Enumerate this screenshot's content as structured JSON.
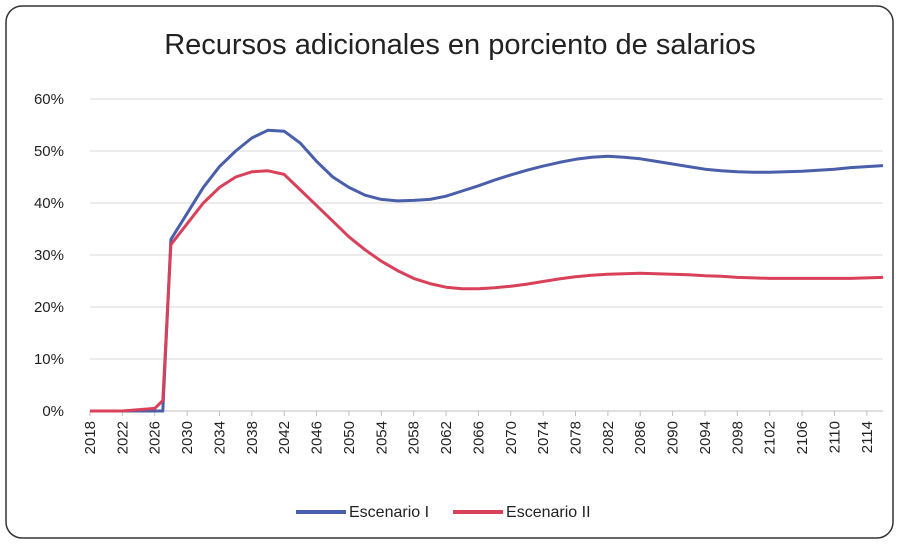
{
  "chart_data": {
    "type": "line",
    "title": "Recursos adicionales en porciento de salarios",
    "x": [
      2018,
      2022,
      2026,
      2027,
      2028,
      2029,
      2030,
      2032,
      2034,
      2036,
      2038,
      2040,
      2042,
      2044,
      2046,
      2048,
      2050,
      2052,
      2054,
      2056,
      2058,
      2060,
      2062,
      2064,
      2066,
      2068,
      2070,
      2072,
      2074,
      2076,
      2078,
      2080,
      2082,
      2084,
      2086,
      2088,
      2090,
      2092,
      2094,
      2096,
      2098,
      2100,
      2102,
      2104,
      2106,
      2108,
      2110,
      2112,
      2114,
      2116
    ],
    "series": [
      {
        "name": "Escenario I",
        "color": "#4a5faa",
        "values": [
          0,
          0,
          0,
          0,
          33,
          35.5,
          38,
          43,
          47,
          50,
          52.5,
          54,
          53.8,
          51.5,
          48,
          45,
          43,
          41.5,
          40.7,
          40.4,
          40.5,
          40.7,
          41.3,
          42.3,
          43.3,
          44.4,
          45.4,
          46.3,
          47.1,
          47.8,
          48.4,
          48.8,
          49,
          48.8,
          48.5,
          48,
          47.5,
          47,
          46.5,
          46.2,
          46,
          45.9,
          45.9,
          46,
          46.1,
          46.3,
          46.5,
          46.8,
          47,
          47.2
        ]
      },
      {
        "name": "Escenario II",
        "color": "#d9405a",
        "values": [
          0,
          0,
          0.5,
          2,
          32,
          34,
          36,
          40,
          43,
          45,
          46,
          46.2,
          45.5,
          42.5,
          39.5,
          36.5,
          33.5,
          31,
          28.8,
          27,
          25.5,
          24.5,
          23.8,
          23.5,
          23.5,
          23.7,
          24,
          24.4,
          24.9,
          25.4,
          25.8,
          26.1,
          26.3,
          26.4,
          26.5,
          26.4,
          26.3,
          26.2,
          26,
          25.9,
          25.7,
          25.6,
          25.5,
          25.5,
          25.5,
          25.5,
          25.5,
          25.5,
          25.6,
          25.7
        ]
      }
    ],
    "xlim": [
      2018,
      2116
    ],
    "xticks": [
      2018,
      2022,
      2026,
      2030,
      2034,
      2038,
      2042,
      2046,
      2050,
      2054,
      2058,
      2062,
      2066,
      2070,
      2074,
      2078,
      2082,
      2086,
      2090,
      2094,
      2098,
      2102,
      2106,
      2110,
      2114
    ],
    "ylim": [
      0,
      60
    ],
    "yticks": [
      {
        "value": 0,
        "label": "0%"
      },
      {
        "value": 10,
        "label": "10%"
      },
      {
        "value": 20,
        "label": "20%"
      },
      {
        "value": 30,
        "label": "30%"
      },
      {
        "value": 40,
        "label": "40%"
      },
      {
        "value": 50,
        "label": "50%"
      },
      {
        "value": 60,
        "label": "60%"
      }
    ],
    "grid": true,
    "legend": "bottom"
  }
}
